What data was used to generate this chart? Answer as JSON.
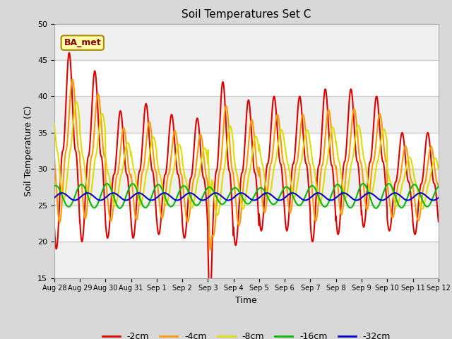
{
  "title": "Soil Temperatures Set C",
  "xlabel": "Time",
  "ylabel": "Soil Temperature (C)",
  "ylim": [
    15,
    50
  ],
  "yticks": [
    15,
    20,
    25,
    30,
    35,
    40,
    45,
    50
  ],
  "annotation": "BA_met",
  "legend_labels": [
    "-2cm",
    "-4cm",
    "-8cm",
    "-16cm",
    "-32cm"
  ],
  "line_colors": [
    "#dd0000",
    "#ff9900",
    "#dddd00",
    "#00bb00",
    "#0000cc"
  ],
  "dates": [
    "Aug 28",
    "Aug 29",
    "Aug 30",
    "Aug 31",
    "Sep 1",
    "Sep 2",
    "Sep 3",
    "Sep 4",
    "Sep 5",
    "Sep 6",
    "Sep 7",
    "Sep 8",
    "Sep 9",
    "Sep 10",
    "Sep 11",
    "Sep 12"
  ],
  "fig_bg": "#d8d8d8",
  "ax_bg": "#ffffff",
  "mean_temp": 26.0,
  "daily_peaks_2cm": [
    46.0,
    43.5,
    38.0,
    39.0,
    37.5,
    37.0,
    42.0,
    39.5,
    40.0,
    40.0,
    41.0,
    41.0,
    40.0,
    35.0,
    35.0
  ],
  "daily_mins_2cm": [
    19.0,
    20.0,
    20.5,
    20.5,
    21.0,
    20.5,
    17.5,
    19.5,
    21.5,
    21.5,
    20.0,
    21.0,
    22.0,
    21.5,
    21.0
  ]
}
